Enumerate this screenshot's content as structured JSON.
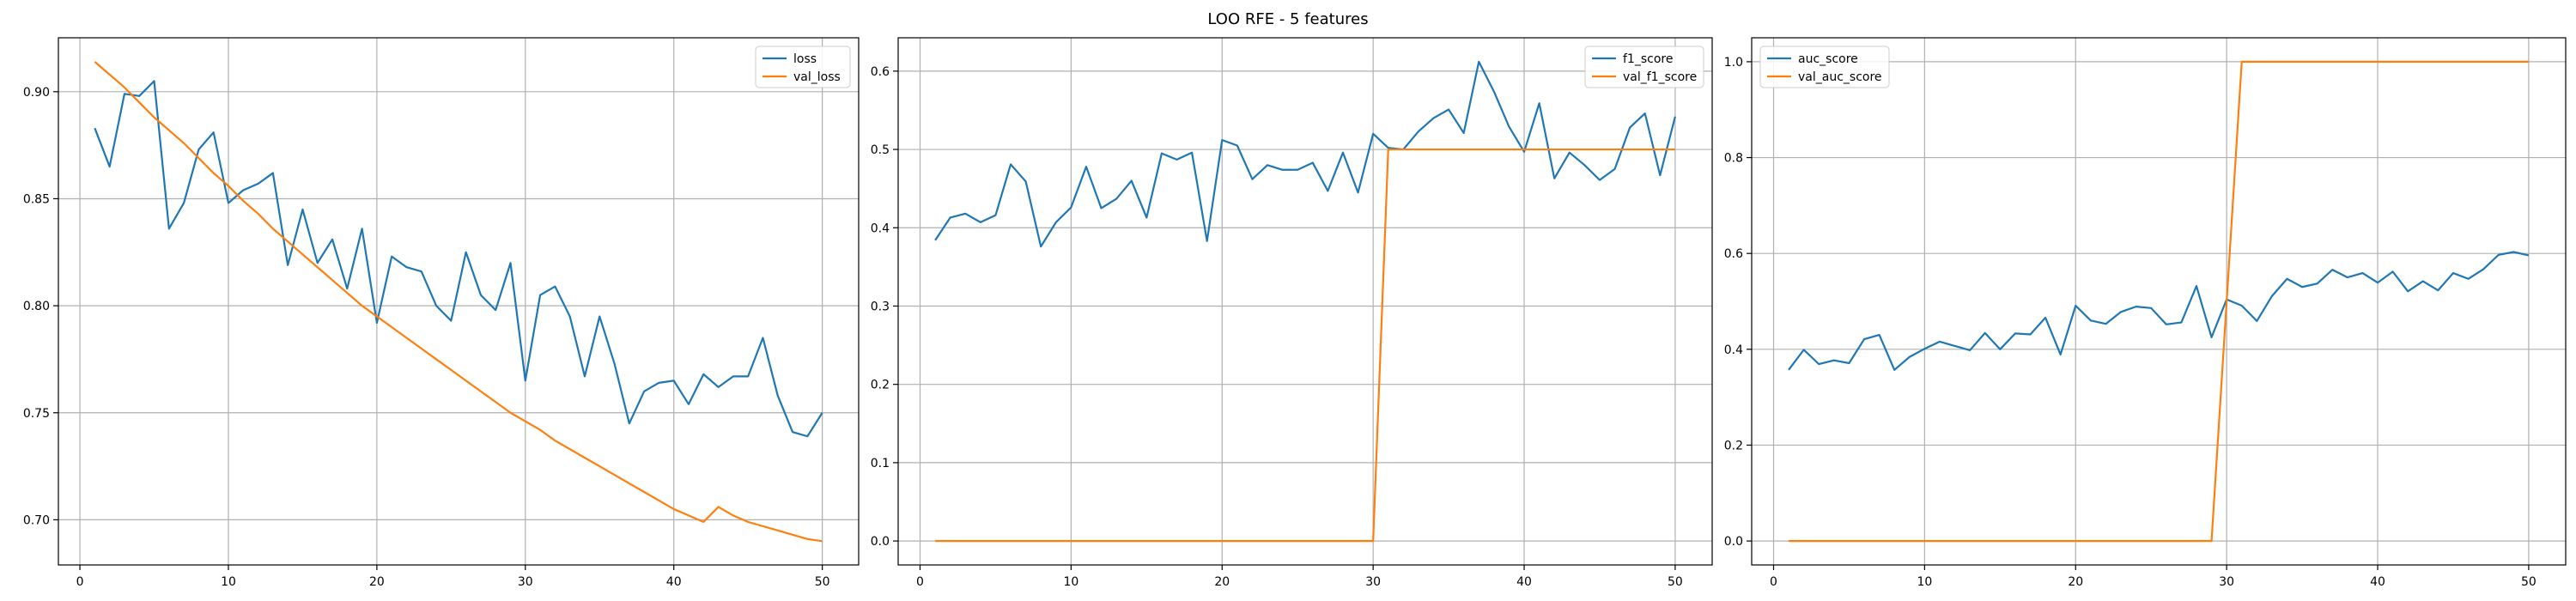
{
  "figure": {
    "title": "LOO RFE - 5 features"
  },
  "colors": {
    "series1": "#1f77b4",
    "series2": "#ff7f0e"
  },
  "chart_data": [
    {
      "type": "line",
      "title": "",
      "xlabel": "",
      "ylabel": "",
      "xlim": [
        -1.45,
        52.45
      ],
      "ylim": [
        0.6789,
        0.9252
      ],
      "xticks": [
        0,
        10,
        20,
        30,
        40,
        50
      ],
      "yticks": [
        0.7,
        0.75,
        0.8,
        0.85,
        0.9
      ],
      "grid": true,
      "legend": "top-right",
      "x": [
        1,
        2,
        3,
        4,
        5,
        6,
        7,
        8,
        9,
        10,
        11,
        12,
        13,
        14,
        15,
        16,
        17,
        18,
        19,
        20,
        21,
        22,
        23,
        24,
        25,
        26,
        27,
        28,
        29,
        30,
        31,
        32,
        33,
        34,
        35,
        36,
        37,
        38,
        39,
        40,
        41,
        42,
        43,
        44,
        45,
        46,
        47,
        48,
        49,
        50
      ],
      "series": [
        {
          "name": "loss",
          "values": [
            0.883,
            0.865,
            0.899,
            0.898,
            0.905,
            0.836,
            0.848,
            0.873,
            0.881,
            0.848,
            0.854,
            0.857,
            0.862,
            0.819,
            0.845,
            0.82,
            0.831,
            0.808,
            0.836,
            0.792,
            0.823,
            0.818,
            0.816,
            0.8,
            0.793,
            0.825,
            0.805,
            0.798,
            0.82,
            0.765,
            0.805,
            0.809,
            0.795,
            0.767,
            0.795,
            0.773,
            0.745,
            0.76,
            0.764,
            0.765,
            0.754,
            0.768,
            0.762,
            0.767,
            0.767,
            0.785,
            0.758,
            0.741,
            0.739,
            0.75
          ]
        },
        {
          "name": "val_loss",
          "values": [
            0.914,
            0.908,
            0.902,
            0.895,
            0.888,
            0.882,
            0.876,
            0.869,
            0.862,
            0.856,
            0.849,
            0.843,
            0.836,
            0.83,
            0.824,
            0.818,
            0.812,
            0.806,
            0.8,
            0.795,
            0.79,
            0.785,
            0.78,
            0.775,
            0.77,
            0.765,
            0.76,
            0.755,
            0.75,
            0.746,
            0.742,
            0.737,
            0.733,
            0.729,
            0.725,
            0.721,
            0.717,
            0.713,
            0.709,
            0.705,
            0.702,
            0.699,
            0.706,
            0.702,
            0.699,
            0.697,
            0.695,
            0.693,
            0.691,
            0.69
          ]
        }
      ]
    },
    {
      "type": "line",
      "title": "",
      "xlabel": "",
      "ylabel": "",
      "xlim": [
        -1.45,
        52.45
      ],
      "ylim": [
        -0.0306,
        0.6426
      ],
      "xticks": [
        0,
        10,
        20,
        30,
        40,
        50
      ],
      "yticks": [
        0.0,
        0.1,
        0.2,
        0.3,
        0.4,
        0.5,
        0.6
      ],
      "grid": true,
      "legend": "top-right",
      "x": [
        1,
        2,
        3,
        4,
        5,
        6,
        7,
        8,
        9,
        10,
        11,
        12,
        13,
        14,
        15,
        16,
        17,
        18,
        19,
        20,
        21,
        22,
        23,
        24,
        25,
        26,
        27,
        28,
        29,
        30,
        31,
        32,
        33,
        34,
        35,
        36,
        37,
        38,
        39,
        40,
        41,
        42,
        43,
        44,
        45,
        46,
        47,
        48,
        49,
        50
      ],
      "series": [
        {
          "name": "f1_score",
          "values": [
            0.384,
            0.413,
            0.418,
            0.407,
            0.416,
            0.481,
            0.459,
            0.376,
            0.407,
            0.426,
            0.478,
            0.425,
            0.437,
            0.46,
            0.413,
            0.495,
            0.487,
            0.496,
            0.383,
            0.512,
            0.505,
            0.462,
            0.48,
            0.474,
            0.474,
            0.483,
            0.447,
            0.496,
            0.445,
            0.52,
            0.502,
            0.5,
            0.523,
            0.54,
            0.551,
            0.521,
            0.612,
            0.574,
            0.529,
            0.497,
            0.559,
            0.463,
            0.496,
            0.48,
            0.461,
            0.475,
            0.528,
            0.546,
            0.467,
            0.542
          ]
        },
        {
          "name": "val_f1_score",
          "values": [
            0,
            0,
            0,
            0,
            0,
            0,
            0,
            0,
            0,
            0,
            0,
            0,
            0,
            0,
            0,
            0,
            0,
            0,
            0,
            0,
            0,
            0,
            0,
            0,
            0,
            0,
            0,
            0,
            0,
            0,
            0.5,
            0.5,
            0.5,
            0.5,
            0.5,
            0.5,
            0.5,
            0.5,
            0.5,
            0.5,
            0.5,
            0.5,
            0.5,
            0.5,
            0.5,
            0.5,
            0.5,
            0.5,
            0.5,
            0.5
          ]
        }
      ]
    },
    {
      "type": "line",
      "title": "",
      "xlabel": "",
      "ylabel": "",
      "xlim": [
        -1.45,
        52.45
      ],
      "ylim": [
        -0.05,
        1.05
      ],
      "xticks": [
        0,
        10,
        20,
        30,
        40,
        50
      ],
      "yticks": [
        0.0,
        0.2,
        0.4,
        0.6,
        0.8,
        1.0
      ],
      "grid": true,
      "legend": "top-left",
      "x": [
        1,
        2,
        3,
        4,
        5,
        6,
        7,
        8,
        9,
        10,
        11,
        12,
        13,
        14,
        15,
        16,
        17,
        18,
        19,
        20,
        21,
        22,
        23,
        24,
        25,
        26,
        27,
        28,
        29,
        30,
        31,
        32,
        33,
        34,
        35,
        36,
        37,
        38,
        39,
        40,
        41,
        42,
        43,
        44,
        45,
        46,
        47,
        48,
        49,
        50
      ],
      "series": [
        {
          "name": "auc_score",
          "values": [
            0.357,
            0.399,
            0.369,
            0.377,
            0.371,
            0.421,
            0.43,
            0.357,
            0.384,
            0.401,
            0.416,
            0.407,
            0.398,
            0.434,
            0.4,
            0.433,
            0.431,
            0.466,
            0.389,
            0.491,
            0.46,
            0.453,
            0.478,
            0.489,
            0.486,
            0.452,
            0.456,
            0.532,
            0.425,
            0.504,
            0.491,
            0.459,
            0.511,
            0.547,
            0.53,
            0.537,
            0.566,
            0.55,
            0.559,
            0.539,
            0.562,
            0.521,
            0.542,
            0.523,
            0.559,
            0.547,
            0.567,
            0.597,
            0.603,
            0.596
          ]
        },
        {
          "name": "val_auc_score",
          "values": [
            0,
            0,
            0,
            0,
            0,
            0,
            0,
            0,
            0,
            0,
            0,
            0,
            0,
            0,
            0,
            0,
            0,
            0,
            0,
            0,
            0,
            0,
            0,
            0,
            0,
            0,
            0,
            0,
            0,
            0.5,
            1,
            1,
            1,
            1,
            1,
            1,
            1,
            1,
            1,
            1,
            1,
            1,
            1,
            1,
            1,
            1,
            1,
            1,
            1,
            1
          ]
        }
      ]
    }
  ]
}
